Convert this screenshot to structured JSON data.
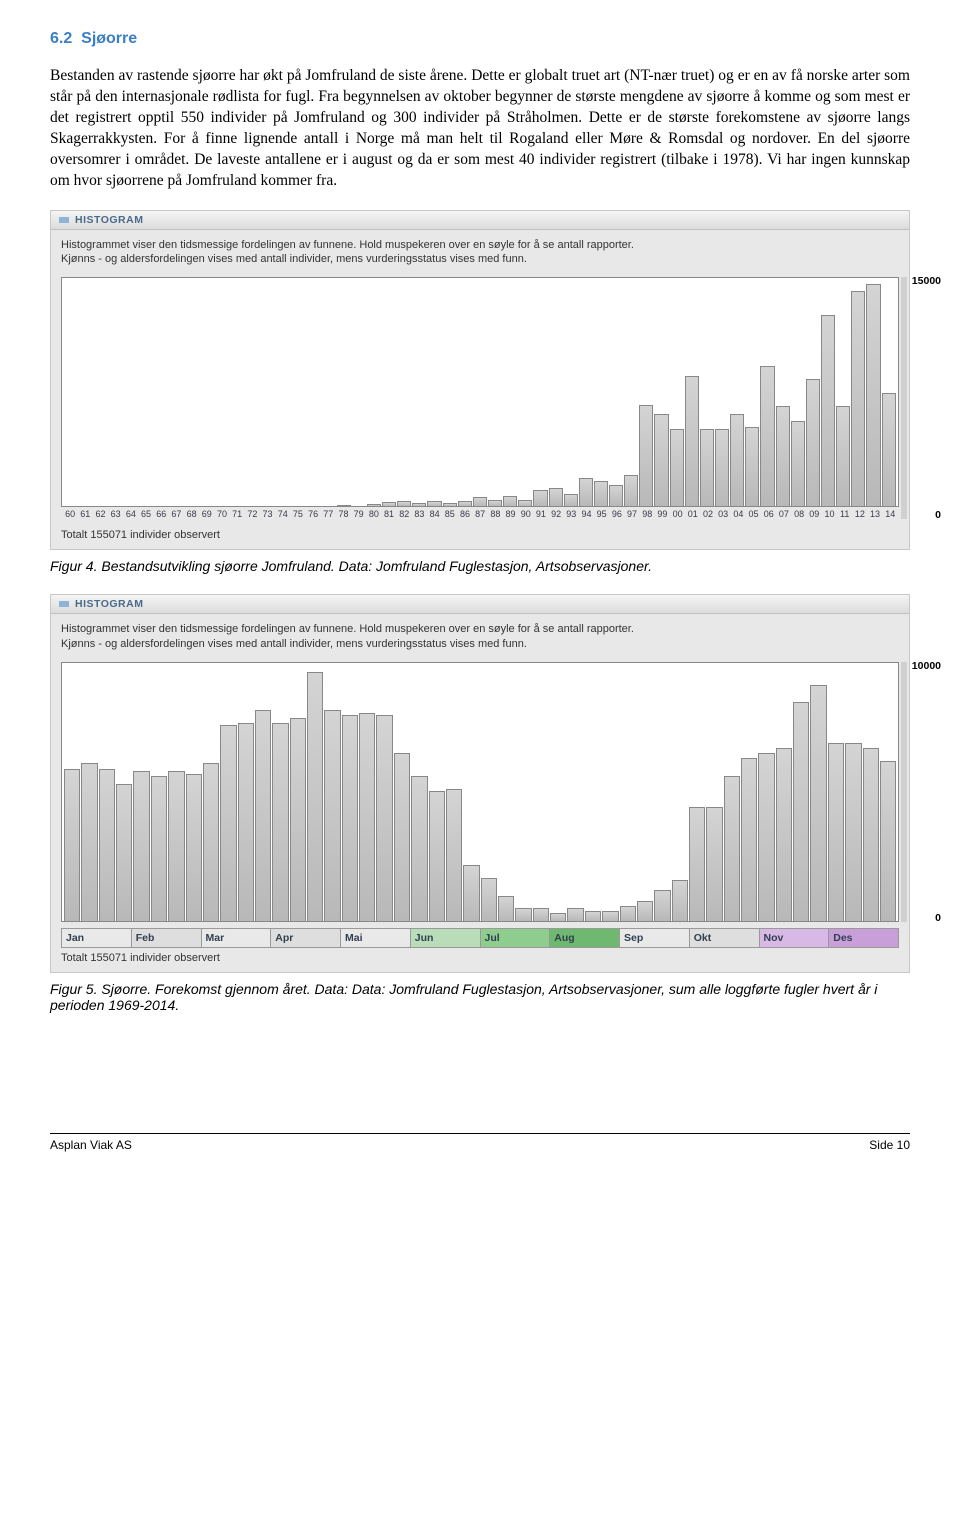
{
  "section": {
    "number": "6.2",
    "title": "Sjøorre"
  },
  "paragraph": "Bestanden av rastende sjøorre har økt på Jomfruland de siste årene. Dette er globalt truet art (NT-nær truet) og er en av få norske arter som står på den internasjonale rødlista for fugl. Fra begynnelsen av oktober begynner de største mengdene av sjøorre å komme og som mest er det registrert opptil 550 individer på Jomfruland og 300 individer på Stråholmen. Dette er de største forekomstene av sjøorre langs Skagerrakkysten. For å finne lignende antall i Norge må man helt til Rogaland eller Møre & Romsdal og nordover. En del sjøorre oversomrer i området. De laveste antallene er i august og da er som mest 40 individer registrert (tilbake i 1978). Vi har ingen kunnskap om hvor sjøorrene på Jomfruland kommer fra.",
  "histogram_shared": {
    "header": "HISTOGRAM",
    "desc_line1": "Histogrammet viser den tidsmessige fordelingen av funnene. Hold muspekeren over en søyle for å se antall rapporter.",
    "desc_line2": "Kjønns - og aldersfordelingen vises med antall individer, mens vurderingsstatus vises med funn.",
    "total_text": "Totalt 155071 individer observert"
  },
  "chart1": {
    "type": "bar",
    "y_max_label": "15000",
    "y_min_label": "0",
    "ymax": 15000,
    "bar_fill": "linear-gradient(#d4d4d4,#b8b8b8)",
    "bar_border": "#888888",
    "box_bg": "#ffffff",
    "box_border": "#888888",
    "years": [
      "60",
      "61",
      "62",
      "63",
      "64",
      "65",
      "66",
      "67",
      "68",
      "69",
      "70",
      "71",
      "72",
      "73",
      "74",
      "75",
      "76",
      "77",
      "78",
      "79",
      "80",
      "81",
      "82",
      "83",
      "84",
      "85",
      "86",
      "87",
      "88",
      "89",
      "90",
      "91",
      "92",
      "93",
      "94",
      "95",
      "96",
      "97",
      "98",
      "99",
      "00",
      "01",
      "02",
      "03",
      "04",
      "05",
      "06",
      "07",
      "08",
      "09",
      "10",
      "11",
      "12",
      "13",
      "14"
    ],
    "values": [
      0,
      0,
      0,
      0,
      0,
      0,
      0,
      0,
      0,
      0,
      0,
      0,
      0,
      0,
      0,
      0,
      0,
      0,
      80,
      0,
      150,
      300,
      350,
      200,
      350,
      250,
      350,
      600,
      400,
      700,
      450,
      1100,
      1200,
      800,
      1900,
      1700,
      1400,
      2100,
      6800,
      6200,
      5200,
      8700,
      5200,
      5200,
      6200,
      5300,
      9400,
      6700,
      5700,
      8500,
      12800,
      6700,
      14400,
      14900,
      7600
    ]
  },
  "caption1": "Figur 4. Bestandsutvikling sjøorre Jomfruland. Data: Jomfruland Fuglestasjon, Artsobservasjoner.",
  "chart2": {
    "type": "bar",
    "y_max_label": "10000",
    "y_min_label": "0",
    "ymax": 10000,
    "bar_fill": "linear-gradient(#d4d4d4,#b8b8b8)",
    "bar_border": "#888888",
    "box_bg": "#ffffff",
    "box_border": "#888888",
    "values": [
      6000,
      6200,
      6000,
      5400,
      5900,
      5700,
      5900,
      5800,
      6200,
      7700,
      7800,
      8300,
      7800,
      8000,
      9800,
      8300,
      8100,
      8200,
      8100,
      6600,
      5700,
      5100,
      5200,
      2200,
      1700,
      1000,
      500,
      500,
      300,
      500,
      400,
      400,
      600,
      800,
      1200,
      1600,
      4500,
      4500,
      5700,
      6400,
      6600,
      6800,
      8600,
      9300,
      7000,
      7000,
      6800,
      6300
    ],
    "months": [
      {
        "label": "Jan",
        "bg": "#e9e9e9"
      },
      {
        "label": "Feb",
        "bg": "#dedede"
      },
      {
        "label": "Mar",
        "bg": "#e9e9e9"
      },
      {
        "label": "Apr",
        "bg": "#dedede"
      },
      {
        "label": "Mai",
        "bg": "#e9e9e9"
      },
      {
        "label": "Jun",
        "bg": "#b8ddb8"
      },
      {
        "label": "Jul",
        "bg": "#8fcd8f"
      },
      {
        "label": "Aug",
        "bg": "#6fb86f"
      },
      {
        "label": "Sep",
        "bg": "#e9e9e9"
      },
      {
        "label": "Okt",
        "bg": "#dedede"
      },
      {
        "label": "Nov",
        "bg": "#d8b8e4"
      },
      {
        "label": "Des",
        "bg": "#c89fd8"
      }
    ]
  },
  "caption2": "Figur 5. Sjøorre. Forekomst gjennom året. Data: Data: Jomfruland Fuglestasjon, Artsobservasjoner, sum alle loggførte fugler hvert år i perioden 1969-2014.",
  "footer": {
    "left": "Asplan Viak AS",
    "right": "Side 10"
  }
}
